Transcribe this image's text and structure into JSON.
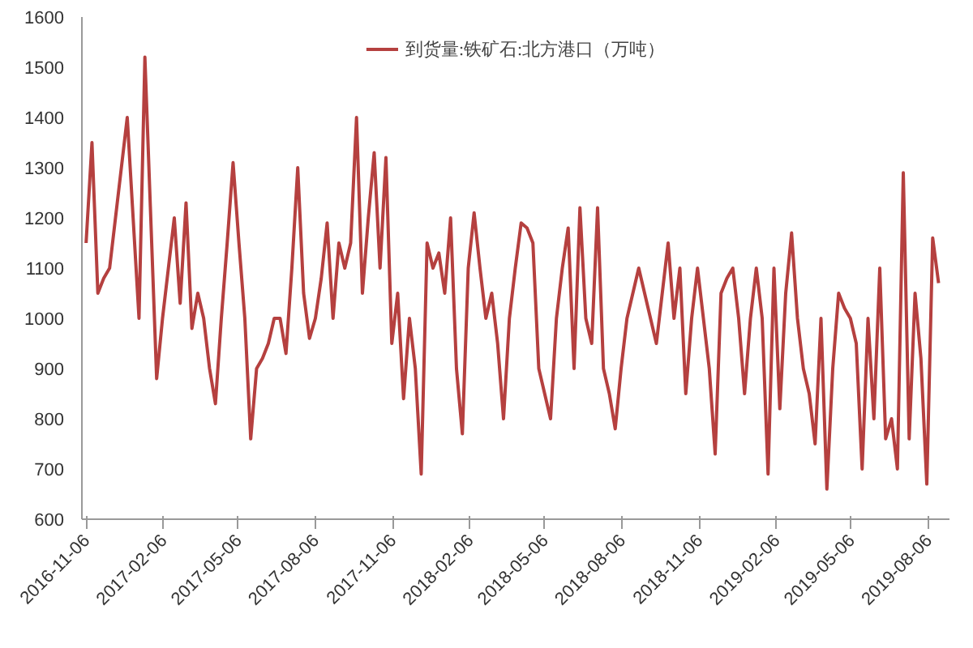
{
  "chart_data": {
    "type": "line",
    "xlim": [
      "2016-11-01",
      "2019-08-31"
    ],
    "ylim": [
      600,
      1600
    ],
    "yticks": [
      600,
      700,
      800,
      900,
      1000,
      1100,
      1200,
      1300,
      1400,
      1500,
      1600
    ],
    "xticks": [
      "2016-11-06",
      "2017-02-06",
      "2017-05-06",
      "2017-08-06",
      "2017-11-06",
      "2018-02-06",
      "2018-05-06",
      "2018-08-06",
      "2018-11-06",
      "2019-02-06",
      "2019-05-06",
      "2019-08-06"
    ],
    "grid": false,
    "legend": "top",
    "line_style": "solid",
    "marker": "none",
    "x": [
      "2016-11-06",
      "2016-11-13",
      "2016-11-20",
      "2016-11-27",
      "2016-12-04",
      "2016-12-11",
      "2016-12-18",
      "2016-12-25",
      "2017-01-01",
      "2017-01-08",
      "2017-01-15",
      "2017-01-22",
      "2017-01-29",
      "2017-02-05",
      "2017-02-12",
      "2017-02-19",
      "2017-02-26",
      "2017-03-05",
      "2017-03-12",
      "2017-03-19",
      "2017-03-26",
      "2017-04-02",
      "2017-04-09",
      "2017-04-16",
      "2017-04-23",
      "2017-04-30",
      "2017-05-07",
      "2017-05-14",
      "2017-05-21",
      "2017-05-28",
      "2017-06-04",
      "2017-06-11",
      "2017-06-18",
      "2017-06-25",
      "2017-07-02",
      "2017-07-09",
      "2017-07-16",
      "2017-07-23",
      "2017-07-30",
      "2017-08-06",
      "2017-08-13",
      "2017-08-20",
      "2017-08-27",
      "2017-09-03",
      "2017-09-10",
      "2017-09-17",
      "2017-09-24",
      "2017-10-01",
      "2017-10-08",
      "2017-10-15",
      "2017-10-22",
      "2017-10-29",
      "2017-11-05",
      "2017-11-12",
      "2017-11-19",
      "2017-11-26",
      "2017-12-03",
      "2017-12-10",
      "2017-12-17",
      "2017-12-24",
      "2017-12-31",
      "2018-01-07",
      "2018-01-14",
      "2018-01-21",
      "2018-01-28",
      "2018-02-04",
      "2018-02-11",
      "2018-02-18",
      "2018-02-25",
      "2018-03-04",
      "2018-03-11",
      "2018-03-18",
      "2018-03-25",
      "2018-04-01",
      "2018-04-08",
      "2018-04-15",
      "2018-04-22",
      "2018-04-29",
      "2018-05-06",
      "2018-05-13",
      "2018-05-20",
      "2018-05-27",
      "2018-06-03",
      "2018-06-10",
      "2018-06-17",
      "2018-06-24",
      "2018-07-01",
      "2018-07-08",
      "2018-07-15",
      "2018-07-22",
      "2018-07-29",
      "2018-08-05",
      "2018-08-12",
      "2018-08-19",
      "2018-08-26",
      "2018-09-02",
      "2018-09-09",
      "2018-09-16",
      "2018-09-23",
      "2018-09-30",
      "2018-10-07",
      "2018-10-14",
      "2018-10-21",
      "2018-10-28",
      "2018-11-04",
      "2018-11-11",
      "2018-11-18",
      "2018-11-25",
      "2018-12-02",
      "2018-12-09",
      "2018-12-16",
      "2018-12-23",
      "2018-12-30",
      "2019-01-06",
      "2019-01-13",
      "2019-01-20",
      "2019-01-27",
      "2019-02-03",
      "2019-02-10",
      "2019-02-17",
      "2019-02-24",
      "2019-03-03",
      "2019-03-10",
      "2019-03-17",
      "2019-03-24",
      "2019-03-31",
      "2019-04-07",
      "2019-04-14",
      "2019-04-21",
      "2019-04-28",
      "2019-05-05",
      "2019-05-12",
      "2019-05-19",
      "2019-05-26",
      "2019-06-02",
      "2019-06-09",
      "2019-06-16",
      "2019-06-23",
      "2019-06-30",
      "2019-07-07",
      "2019-07-14",
      "2019-07-21",
      "2019-07-28",
      "2019-08-04",
      "2019-08-11",
      "2019-08-18"
    ],
    "series": [
      {
        "name": "到货量:铁矿石:北方港口（万吨）",
        "color": "#b5403f",
        "values": [
          1150,
          1350,
          1050,
          1080,
          1100,
          1200,
          1300,
          1400,
          1200,
          1000,
          1520,
          1200,
          880,
          1000,
          1100,
          1200,
          1030,
          1230,
          980,
          1050,
          1000,
          900,
          830,
          1000,
          1150,
          1310,
          1150,
          1000,
          760,
          900,
          920,
          950,
          1000,
          1000,
          930,
          1100,
          1300,
          1050,
          960,
          1000,
          1080,
          1190,
          1000,
          1150,
          1100,
          1150,
          1400,
          1050,
          1200,
          1330,
          1100,
          1320,
          950,
          1050,
          840,
          1000,
          900,
          690,
          1150,
          1100,
          1130,
          1050,
          1200,
          900,
          770,
          1100,
          1210,
          1100,
          1000,
          1050,
          950,
          800,
          1000,
          1100,
          1190,
          1180,
          1150,
          900,
          850,
          800,
          1000,
          1100,
          1180,
          900,
          1220,
          1000,
          950,
          1220,
          900,
          850,
          780,
          900,
          1000,
          1050,
          1100,
          1050,
          1000,
          950,
          1050,
          1150,
          1000,
          1100,
          850,
          1000,
          1100,
          1000,
          900,
          730,
          1050,
          1080,
          1100,
          1000,
          850,
          1000,
          1100,
          1000,
          690,
          1100,
          820,
          1050,
          1170,
          1000,
          900,
          850,
          750,
          1000,
          660,
          900,
          1050,
          1020,
          1000,
          950,
          700,
          1000,
          800,
          1100,
          760,
          800,
          700,
          1290,
          760,
          1050,
          920,
          670,
          1160,
          1070
        ]
      }
    ]
  }
}
